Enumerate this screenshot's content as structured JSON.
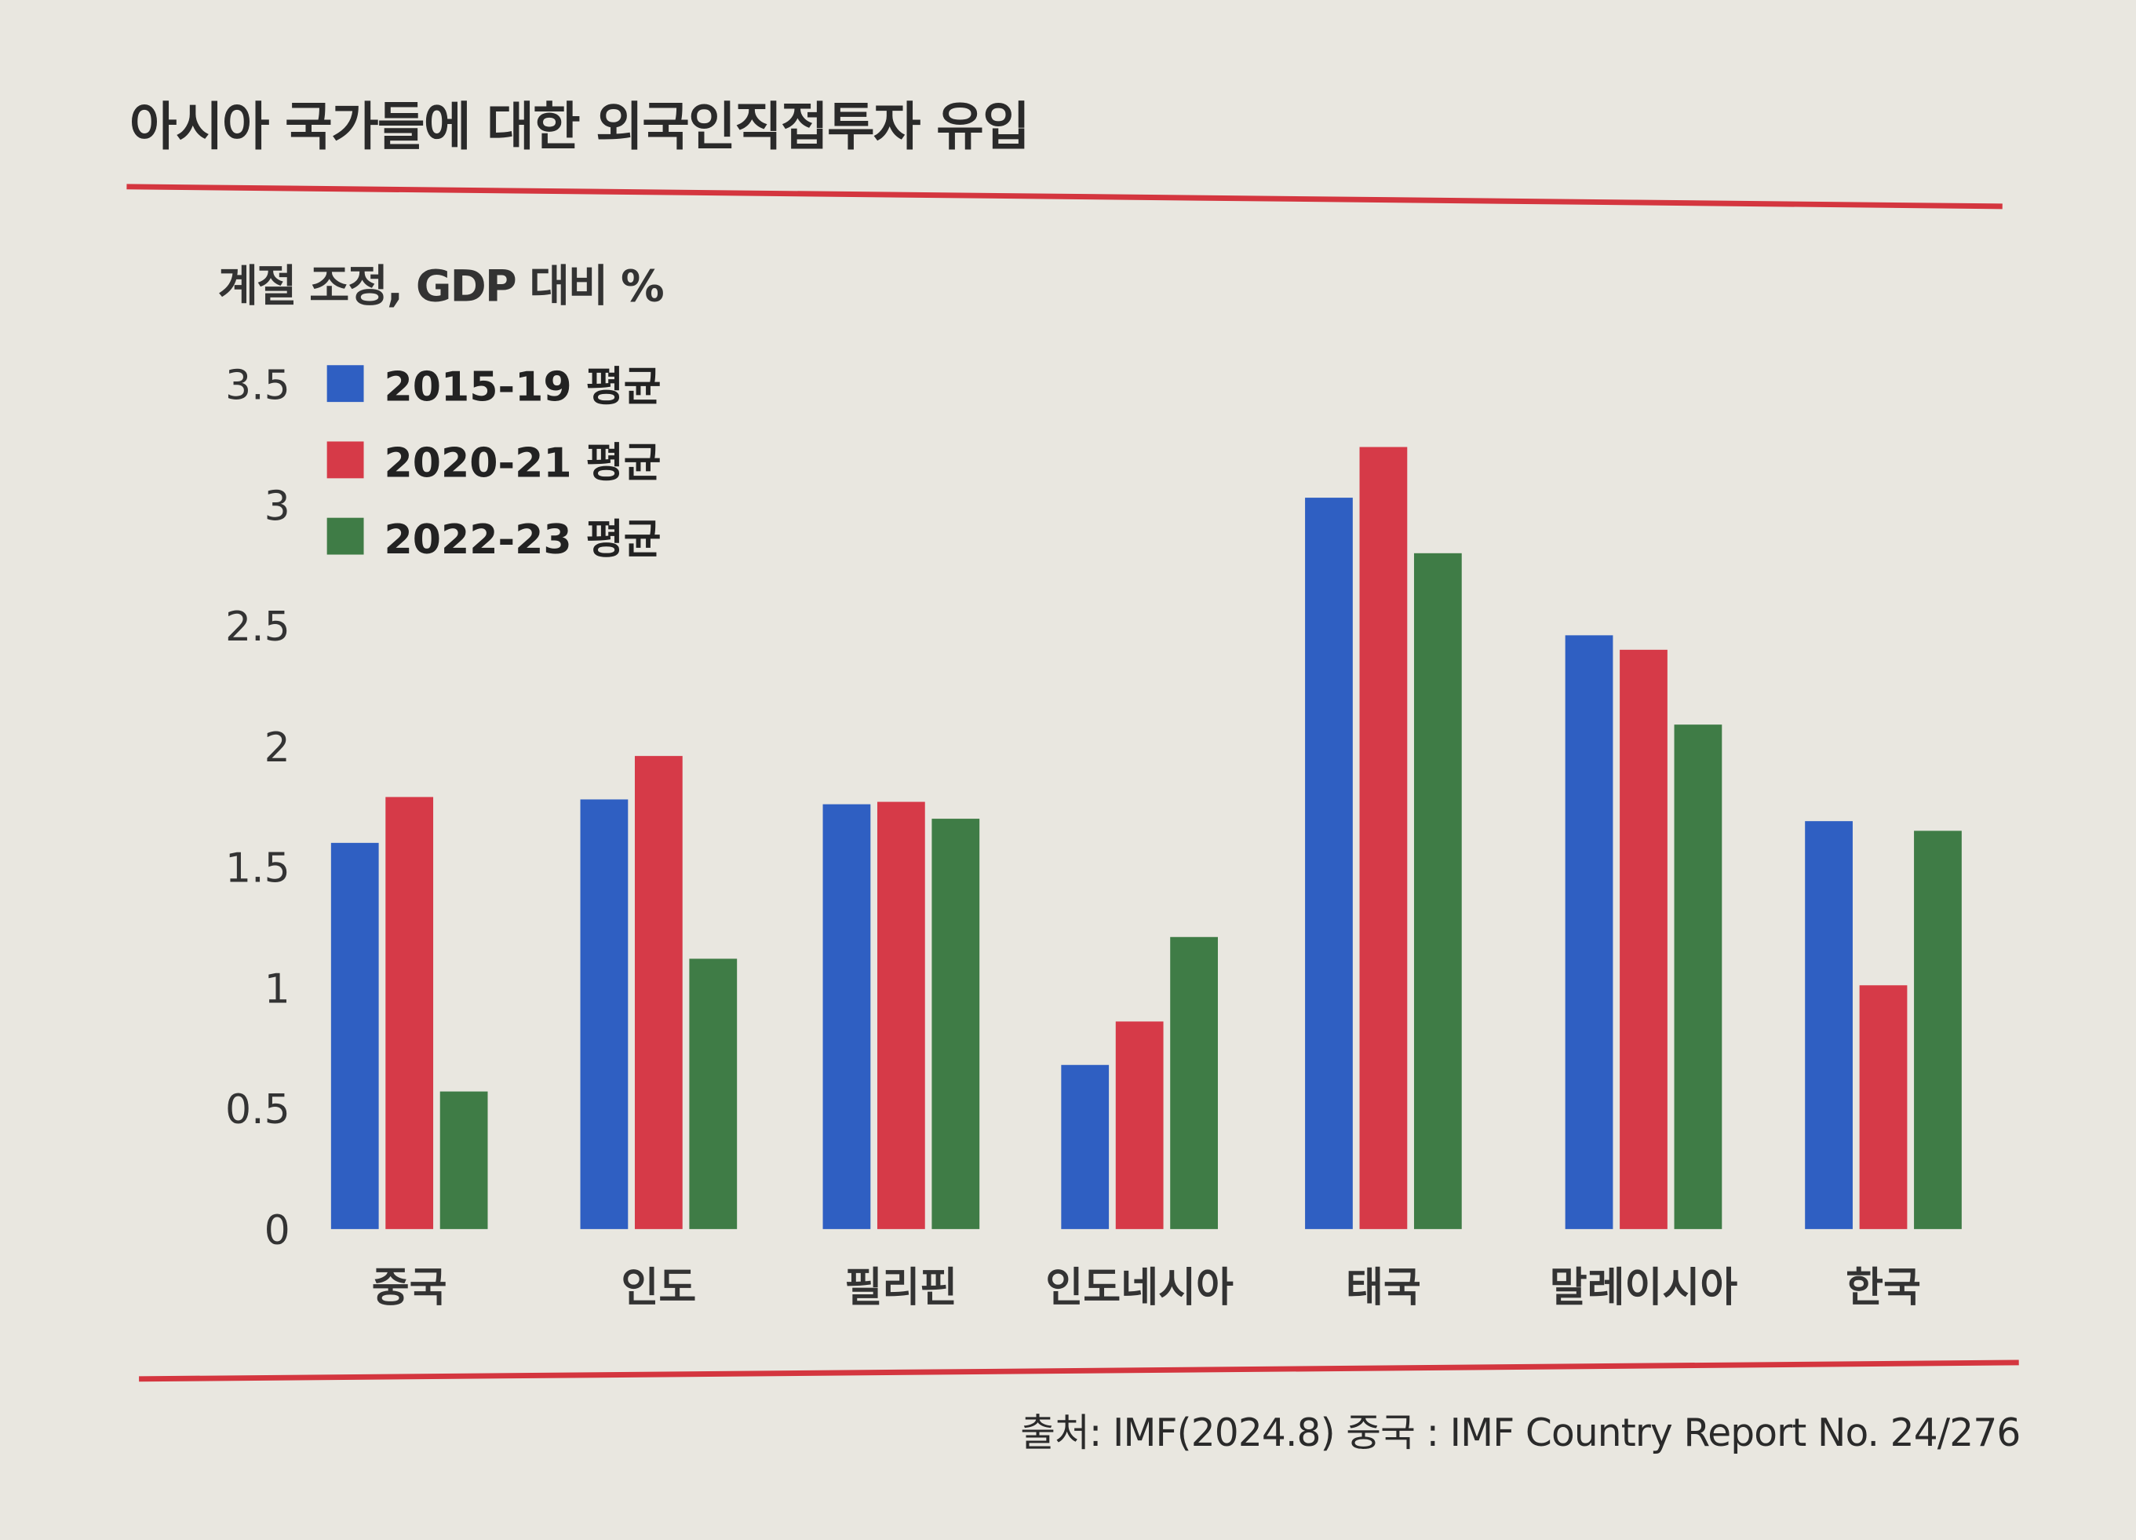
{
  "title": "아시아 국가들에 대한 외국인직접투자 유입",
  "source": "출처: IMF(2024.8) 중국 : IMF Country Report No. 24/276",
  "chart_data": {
    "type": "bar",
    "title": "아시아 국가들에 대한 외국인직접투자 유입",
    "ylabel": "계절 조정, GDP 대비 %",
    "xlabel": "",
    "ylim": [
      0,
      3.5
    ],
    "yticks": [
      "0",
      "0.5",
      "1",
      "1.5",
      "2",
      "2.5",
      "3",
      "3.5"
    ],
    "grid": false,
    "legend": "top-left",
    "categories": [
      "중국",
      "인도",
      "필리핀",
      "인도네시아",
      "태국",
      "말레이시아",
      "한국"
    ],
    "series": [
      {
        "name": "2015-19 평균",
        "color": "#2f5fc2",
        "values": [
          1.6,
          1.78,
          1.76,
          0.68,
          3.03,
          2.46,
          1.69
        ]
      },
      {
        "name": "2020-21 평균",
        "color": "#d63a48",
        "values": [
          1.79,
          1.96,
          1.77,
          0.86,
          3.24,
          2.4,
          1.01
        ]
      },
      {
        "name": "2022-23 평균",
        "color": "#3f7c46",
        "values": [
          0.57,
          1.12,
          1.7,
          1.21,
          2.8,
          2.09,
          1.65
        ]
      }
    ]
  }
}
